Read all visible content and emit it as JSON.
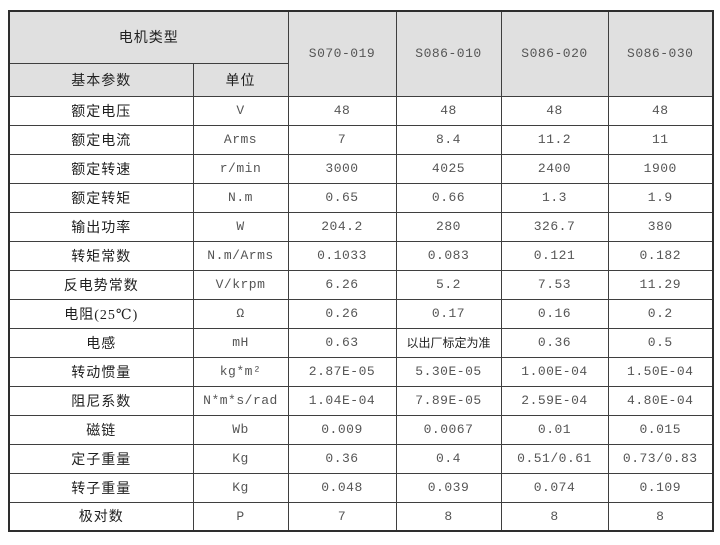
{
  "table": {
    "header": {
      "motor_type_label": "电机类型",
      "basic_param_label": "基本参数",
      "unit_label": "单位",
      "models": [
        "S070-019",
        "S086-010",
        "S086-020",
        "S086-030"
      ]
    },
    "rows": [
      {
        "param": "额定电压",
        "unit": "V",
        "values": [
          "48",
          "48",
          "48",
          "48"
        ]
      },
      {
        "param": "额定电流",
        "unit": "Arms",
        "values": [
          "7",
          "8.4",
          "11.2",
          "11"
        ]
      },
      {
        "param": "额定转速",
        "unit": "r/min",
        "values": [
          "3000",
          "4025",
          "2400",
          "1900"
        ]
      },
      {
        "param": "额定转矩",
        "unit": "N.m",
        "values": [
          "0.65",
          "0.66",
          "1.3",
          "1.9"
        ]
      },
      {
        "param": "输出功率",
        "unit": "W",
        "values": [
          "204.2",
          "280",
          "326.7",
          "380"
        ]
      },
      {
        "param": "转矩常数",
        "unit": "N.m/Arms",
        "values": [
          "0.1033",
          "0.083",
          "0.121",
          "0.182"
        ]
      },
      {
        "param": "反电势常数",
        "unit": "V/krpm",
        "values": [
          "6.26",
          "5.2",
          "7.53",
          "11.29"
        ]
      },
      {
        "param": "电阻(25℃)",
        "unit": "Ω",
        "values": [
          "0.26",
          "0.17",
          "0.16",
          "0.2"
        ]
      },
      {
        "param": "电感",
        "unit": "mH",
        "values": [
          "0.63",
          "以出厂标定为准",
          "0.36",
          "0.5"
        ]
      },
      {
        "param": "转动惯量",
        "unit": "kg*m²",
        "values": [
          "2.87E-05",
          "5.30E-05",
          "1.00E-04",
          "1.50E-04"
        ]
      },
      {
        "param": "阻尼系数",
        "unit": "N*m*s/rad",
        "values": [
          "1.04E-04",
          "7.89E-05",
          "2.59E-04",
          "4.80E-04"
        ]
      },
      {
        "param": "磁链",
        "unit": "Wb",
        "values": [
          "0.009",
          "0.0067",
          "0.01",
          "0.015"
        ]
      },
      {
        "param": "定子重量",
        "unit": "Kg",
        "values": [
          "0.36",
          "0.4",
          "0.51/0.61",
          "0.73/0.83"
        ]
      },
      {
        "param": "转子重量",
        "unit": "Kg",
        "values": [
          "0.048",
          "0.039",
          "0.074",
          "0.109"
        ]
      },
      {
        "param": "极对数",
        "unit": "P",
        "values": [
          "7",
          "8",
          "8",
          "8"
        ]
      }
    ],
    "colors": {
      "header_bg": "#e0e0e0",
      "border": "#3f3f3f",
      "label_text": "#1f1f1f",
      "value_text": "#555555"
    }
  }
}
